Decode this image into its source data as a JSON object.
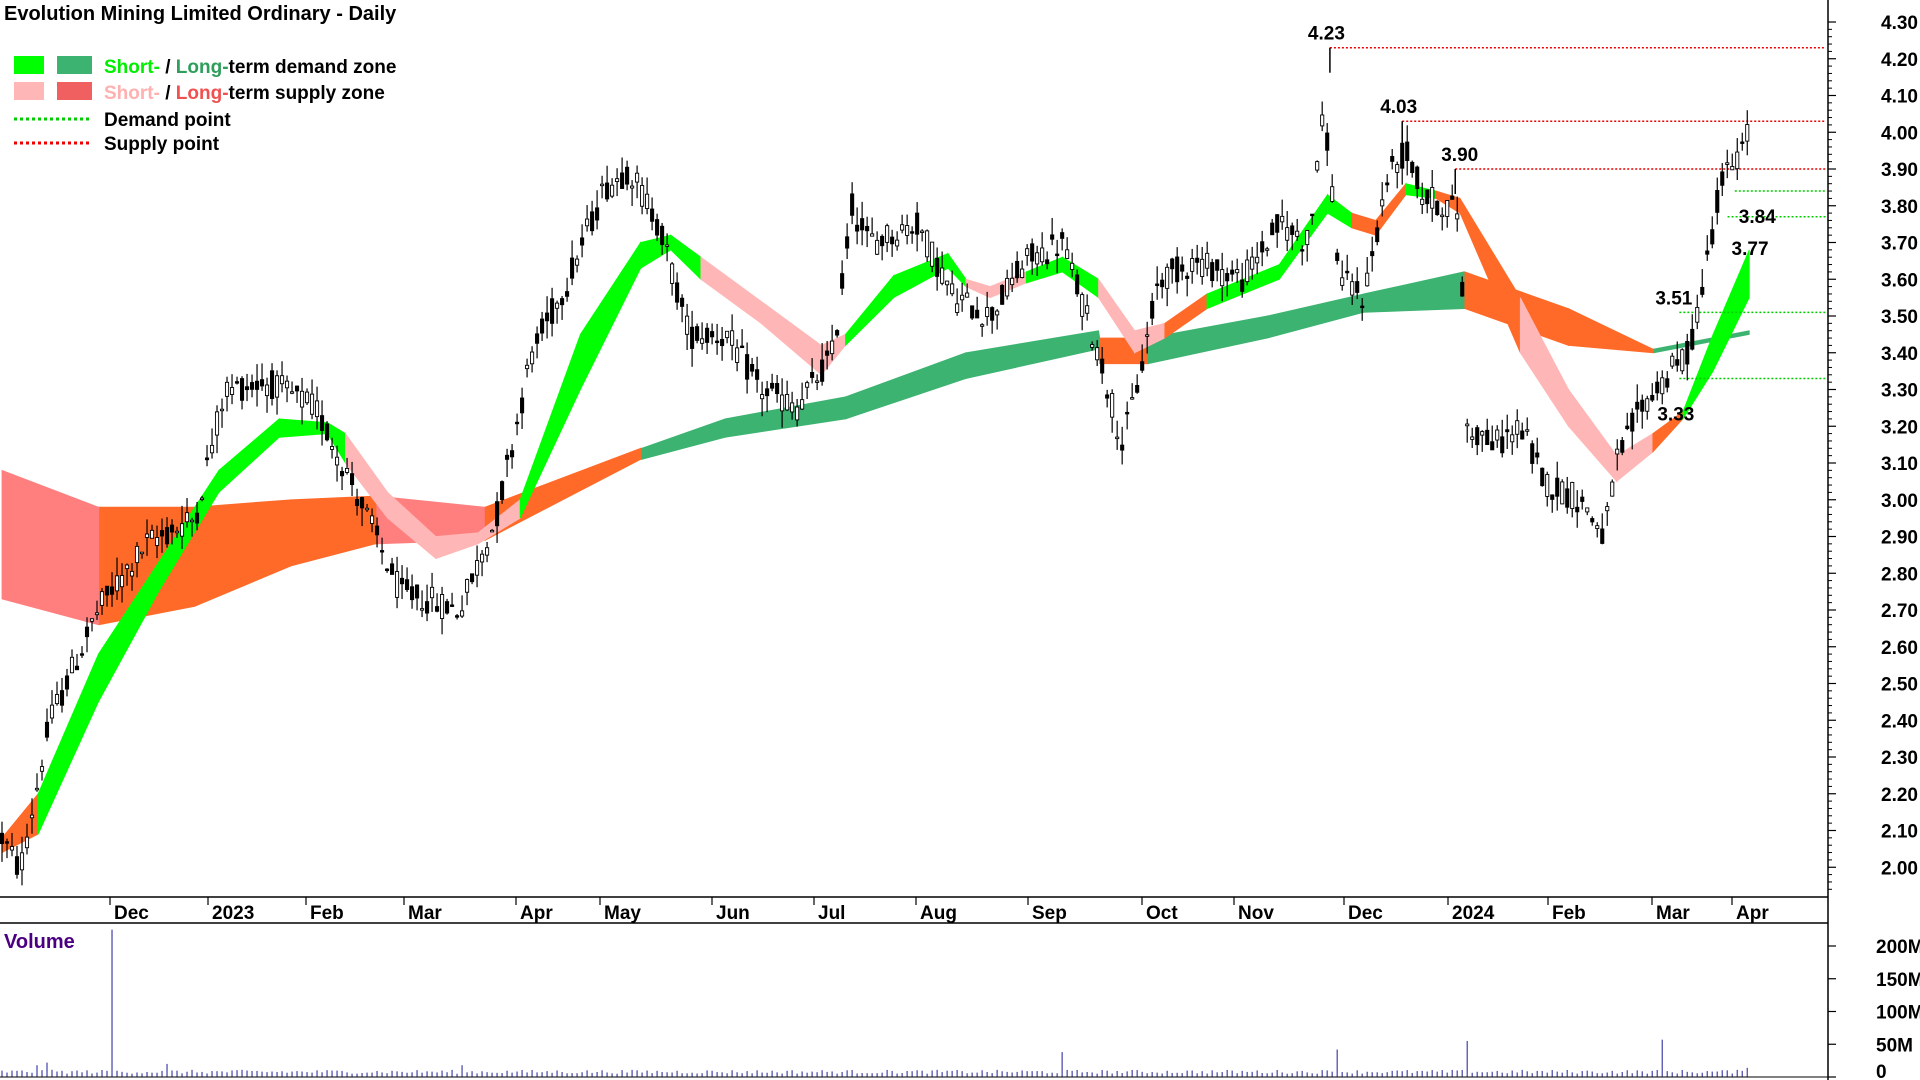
{
  "chart_data": {
    "type": "candlestick",
    "title": "Evolution Mining Limited Ordinary - Daily",
    "legend": {
      "demand_zone": {
        "short": "Short-",
        "sep": " / ",
        "long": "Long-",
        "rest": "term demand zone"
      },
      "supply_zone": {
        "short": "Short-",
        "sep": " / ",
        "long": "Long-",
        "rest": "term supply zone"
      },
      "demand_point": "Demand point",
      "supply_point": "Supply point"
    },
    "colors": {
      "short_demand": "#00ff00",
      "long_demand": "#3cb371",
      "short_supply": "#ffb6b6",
      "long_supply": "#ff6a28",
      "long_supply_light": "#ff7f7f",
      "demand_point": "#00cc00",
      "supply_point": "#ee0000",
      "candle": "#000000",
      "volume": "#5050b0"
    },
    "price_axis": {
      "ylim": [
        1.9,
        4.33
      ],
      "ticks": [
        "4.30",
        "4.20",
        "4.10",
        "4.00",
        "3.90",
        "3.80",
        "3.70",
        "3.60",
        "3.50",
        "3.40",
        "3.30",
        "3.20",
        "3.10",
        "3.00",
        "2.90",
        "2.80",
        "2.70",
        "2.60",
        "2.50",
        "2.40",
        "2.30",
        "2.20",
        "2.10",
        "2.00"
      ],
      "position": "right"
    },
    "x_axis": {
      "labels": [
        "Dec",
        "2023",
        "Feb",
        "Mar",
        "Apr",
        "May",
        "Jun",
        "Jul",
        "Aug",
        "Sep",
        "Oct",
        "Nov",
        "Dec",
        "2024",
        "Feb",
        "Mar",
        "Apr"
      ]
    },
    "close_path": [
      [
        0,
        2.08
      ],
      [
        15,
        1.99
      ],
      [
        40,
        2.4
      ],
      [
        80,
        2.7
      ],
      [
        120,
        2.88
      ],
      [
        160,
        2.95
      ],
      [
        185,
        3.3
      ],
      [
        220,
        3.32
      ],
      [
        260,
        3.25
      ],
      [
        290,
        3.05
      ],
      [
        330,
        2.75
      ],
      [
        380,
        2.7
      ],
      [
        410,
        2.95
      ],
      [
        440,
        3.4
      ],
      [
        470,
        3.6
      ],
      [
        500,
        3.85
      ],
      [
        520,
        3.9
      ],
      [
        545,
        3.75
      ],
      [
        570,
        3.45
      ],
      [
        600,
        3.45
      ],
      [
        630,
        3.3
      ],
      [
        660,
        3.25
      ],
      [
        690,
        3.4
      ],
      [
        705,
        3.8
      ],
      [
        720,
        3.7
      ],
      [
        760,
        3.75
      ],
      [
        790,
        3.55
      ],
      [
        820,
        3.5
      ],
      [
        850,
        3.65
      ],
      [
        880,
        3.7
      ],
      [
        910,
        3.4
      ],
      [
        930,
        3.15
      ],
      [
        945,
        3.35
      ],
      [
        960,
        3.6
      ],
      [
        990,
        3.65
      ],
      [
        1030,
        3.6
      ],
      [
        1060,
        3.75
      ],
      [
        1085,
        3.7
      ],
      [
        1092,
        3.95
      ],
      [
        1098,
        4.05
      ],
      [
        1110,
        3.6
      ],
      [
        1130,
        3.55
      ],
      [
        1150,
        3.88
      ],
      [
        1165,
        3.95
      ],
      [
        1180,
        3.82
      ],
      [
        1200,
        3.8
      ],
      [
        1210,
        3.78
      ],
      [
        1215,
        3.2
      ],
      [
        1240,
        3.15
      ],
      [
        1260,
        3.2
      ],
      [
        1280,
        3.05
      ],
      [
        1310,
        3.0
      ],
      [
        1330,
        2.9
      ],
      [
        1340,
        3.1
      ],
      [
        1360,
        3.25
      ],
      [
        1385,
        3.35
      ],
      [
        1400,
        3.4
      ],
      [
        1415,
        3.65
      ],
      [
        1425,
        3.85
      ],
      [
        1440,
        3.93
      ],
      [
        1450,
        4.0
      ]
    ],
    "short_zone": [
      {
        "x": 0,
        "a": 2.04,
        "b": 2.08,
        "c": "long_supply"
      },
      {
        "x": 30,
        "a": 2.09,
        "b": 2.2,
        "c": "short_demand"
      },
      {
        "x": 80,
        "a": 2.45,
        "b": 2.58,
        "c": "short_demand"
      },
      {
        "x": 130,
        "a": 2.75,
        "b": 2.83,
        "c": "short_demand"
      },
      {
        "x": 180,
        "a": 3.02,
        "b": 3.08,
        "c": "short_demand"
      },
      {
        "x": 230,
        "a": 3.17,
        "b": 3.22,
        "c": "short_demand"
      },
      {
        "x": 270,
        "a": 3.18,
        "b": 3.21,
        "c": "short_demand"
      },
      {
        "x": 285,
        "a": 3.1,
        "b": 3.18,
        "c": "short_supply"
      },
      {
        "x": 320,
        "a": 2.95,
        "b": 3.02,
        "c": "short_supply"
      },
      {
        "x": 360,
        "a": 2.84,
        "b": 2.9,
        "c": "short_supply"
      },
      {
        "x": 395,
        "a": 2.88,
        "b": 2.91,
        "c": "short_supply"
      },
      {
        "x": 430,
        "a": 2.95,
        "b": 3.0,
        "c": "short_demand"
      },
      {
        "x": 480,
        "a": 3.3,
        "b": 3.45,
        "c": "short_demand"
      },
      {
        "x": 530,
        "a": 3.63,
        "b": 3.7,
        "c": "short_demand"
      },
      {
        "x": 555,
        "a": 3.68,
        "b": 3.72,
        "c": "short_demand"
      },
      {
        "x": 580,
        "a": 3.6,
        "b": 3.66,
        "c": "short_supply"
      },
      {
        "x": 630,
        "a": 3.48,
        "b": 3.54,
        "c": "short_supply"
      },
      {
        "x": 680,
        "a": 3.34,
        "b": 3.42,
        "c": "short_supply"
      },
      {
        "x": 700,
        "a": 3.42,
        "b": 3.45,
        "c": "short_demand"
      },
      {
        "x": 740,
        "a": 3.55,
        "b": 3.61,
        "c": "short_demand"
      },
      {
        "x": 785,
        "a": 3.63,
        "b": 3.67,
        "c": "short_demand"
      },
      {
        "x": 800,
        "a": 3.58,
        "b": 3.6,
        "c": "short_supply"
      },
      {
        "x": 820,
        "a": 3.55,
        "b": 3.58,
        "c": "short_supply"
      },
      {
        "x": 850,
        "a": 3.59,
        "b": 3.62,
        "c": "short_demand"
      },
      {
        "x": 880,
        "a": 3.62,
        "b": 3.66,
        "c": "short_demand"
      },
      {
        "x": 910,
        "a": 3.55,
        "b": 3.6,
        "c": "short_supply"
      },
      {
        "x": 940,
        "a": 3.4,
        "b": 3.46,
        "c": "short_supply"
      },
      {
        "x": 965,
        "a": 3.44,
        "b": 3.48,
        "c": "long_supply"
      },
      {
        "x": 1000,
        "a": 3.52,
        "b": 3.56,
        "c": "short_demand"
      },
      {
        "x": 1060,
        "a": 3.6,
        "b": 3.64,
        "c": "short_demand"
      },
      {
        "x": 1100,
        "a": 3.78,
        "b": 3.83,
        "c": "short_demand"
      },
      {
        "x": 1120,
        "a": 3.74,
        "b": 3.78,
        "c": "long_supply"
      },
      {
        "x": 1140,
        "a": 3.72,
        "b": 3.76,
        "c": "long_supply"
      },
      {
        "x": 1165,
        "a": 3.83,
        "b": 3.86,
        "c": "short_demand"
      },
      {
        "x": 1190,
        "a": 3.82,
        "b": 3.84,
        "c": "long_supply"
      },
      {
        "x": 1210,
        "a": 3.78,
        "b": 3.82,
        "c": "long_supply"
      },
      {
        "x": 1260,
        "a": 3.4,
        "b": 3.55,
        "c": "short_supply"
      },
      {
        "x": 1300,
        "a": 3.2,
        "b": 3.3,
        "c": "short_supply"
      },
      {
        "x": 1340,
        "a": 3.05,
        "b": 3.12,
        "c": "short_supply"
      },
      {
        "x": 1370,
        "a": 3.13,
        "b": 3.18,
        "c": "long_supply"
      },
      {
        "x": 1395,
        "a": 3.22,
        "b": 3.24,
        "c": "short_demand"
      },
      {
        "x": 1420,
        "a": 3.35,
        "b": 3.45,
        "c": "short_demand"
      },
      {
        "x": 1450,
        "a": 3.55,
        "b": 3.68,
        "c": "short_demand"
      }
    ],
    "long_zone": [
      {
        "x": 0,
        "a": 2.73,
        "b": 3.08,
        "c": "long_supply_light"
      },
      {
        "x": 80,
        "a": 2.66,
        "b": 2.98,
        "c": "long_supply_light"
      },
      {
        "x": 81,
        "a": 2.66,
        "b": 2.98,
        "c": "long_supply"
      },
      {
        "x": 160,
        "a": 2.71,
        "b": 2.98,
        "c": "long_supply"
      },
      {
        "x": 240,
        "a": 2.82,
        "b": 3.0,
        "c": "long_supply"
      },
      {
        "x": 310,
        "a": 2.88,
        "b": 3.01,
        "c": "long_supply"
      },
      {
        "x": 311,
        "a": 2.88,
        "b": 3.01,
        "c": "long_supply_light"
      },
      {
        "x": 400,
        "a": 2.89,
        "b": 2.98,
        "c": "long_supply_light"
      },
      {
        "x": 401,
        "a": 2.89,
        "b": 2.98,
        "c": "long_supply"
      },
      {
        "x": 530,
        "a": 3.11,
        "b": 3.14,
        "c": "long_supply"
      },
      {
        "x": 531,
        "a": 3.11,
        "b": 3.14,
        "c": "long_demand"
      },
      {
        "x": 600,
        "a": 3.17,
        "b": 3.22,
        "c": "long_demand"
      },
      {
        "x": 700,
        "a": 3.22,
        "b": 3.28,
        "c": "long_demand"
      },
      {
        "x": 800,
        "a": 3.33,
        "b": 3.4,
        "c": "long_demand"
      },
      {
        "x": 910,
        "a": 3.41,
        "b": 3.46,
        "c": "long_demand"
      },
      {
        "x": 911,
        "a": 3.37,
        "b": 3.44,
        "c": "long_supply"
      },
      {
        "x": 950,
        "a": 3.37,
        "b": 3.44,
        "c": "long_supply"
      },
      {
        "x": 951,
        "a": 3.37,
        "b": 3.44,
        "c": "long_demand"
      },
      {
        "x": 1050,
        "a": 3.44,
        "b": 3.5,
        "c": "long_demand"
      },
      {
        "x": 1130,
        "a": 3.51,
        "b": 3.56,
        "c": "long_demand"
      },
      {
        "x": 1213,
        "a": 3.52,
        "b": 3.62,
        "c": "long_demand"
      },
      {
        "x": 1214,
        "a": 3.52,
        "b": 3.62,
        "c": "long_supply"
      },
      {
        "x": 1300,
        "a": 3.42,
        "b": 3.52,
        "c": "long_supply"
      },
      {
        "x": 1370,
        "a": 3.4,
        "b": 3.41,
        "c": "long_supply"
      },
      {
        "x": 1371,
        "a": 3.4,
        "b": 3.41,
        "c": "long_demand"
      },
      {
        "x": 1450,
        "a": 3.45,
        "b": 3.46,
        "c": "long_demand"
      }
    ],
    "supply_points": [
      {
        "label": "4.23",
        "value": 4.23,
        "x0": 1102
      },
      {
        "label": "4.03",
        "value": 4.03,
        "x0": 1162
      },
      {
        "label": "3.90",
        "value": 3.9,
        "x0": 1206
      }
    ],
    "demand_points": [
      {
        "label": "3.84",
        "value": 3.84,
        "x0": 1438
      },
      {
        "label": "3.77",
        "value": 3.77,
        "x0": 1432
      },
      {
        "label": "3.51",
        "value": 3.51,
        "x0": 1392
      },
      {
        "label": "3.33",
        "value": 3.33,
        "x0": 1392
      }
    ],
    "volume": {
      "title": "Volume",
      "ticks": [
        "200M",
        "150M",
        "100M",
        "50M",
        "0"
      ],
      "ylim": [
        0,
        230
      ],
      "baseline": 5,
      "spikes": [
        {
          "x": 30,
          "v": 18
        },
        {
          "x": 38,
          "v": 22
        },
        {
          "x": 90,
          "v": 225
        },
        {
          "x": 137,
          "v": 20
        },
        {
          "x": 380,
          "v": 18
        },
        {
          "x": 880,
          "v": 38
        },
        {
          "x": 1107,
          "v": 42
        },
        {
          "x": 1215,
          "v": 55
        },
        {
          "x": 1378,
          "v": 57
        },
        {
          "x": 1450,
          "v": 14
        }
      ]
    }
  }
}
